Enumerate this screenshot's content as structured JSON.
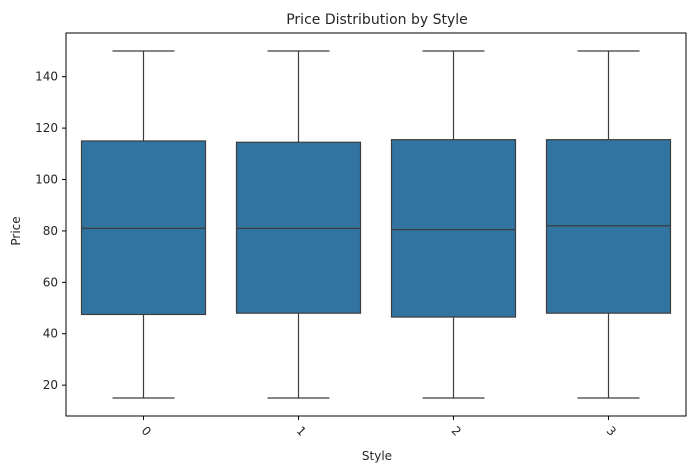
{
  "chart_data": {
    "type": "box",
    "title": "Price Distribution by Style",
    "xlabel": "Style",
    "ylabel": "Price",
    "categories": [
      "0",
      "1",
      "2",
      "3"
    ],
    "boxes": [
      {
        "category": "0",
        "min": 15,
        "q1": 47.5,
        "median": 81,
        "q3": 115,
        "max": 150
      },
      {
        "category": "1",
        "min": 15,
        "q1": 48,
        "median": 81,
        "q3": 114.5,
        "max": 150
      },
      {
        "category": "2",
        "min": 15,
        "q1": 46.5,
        "median": 80.5,
        "q3": 115.5,
        "max": 150
      },
      {
        "category": "3",
        "min": 15,
        "q1": 48,
        "median": 82,
        "q3": 115.5,
        "max": 150
      }
    ],
    "yticks": [
      20,
      40,
      60,
      80,
      100,
      120,
      140
    ],
    "ylim": [
      8,
      157
    ],
    "xtick_rotation": 45,
    "grid": false,
    "colors": {
      "box_fill": "#3274a1",
      "line": "#3d3d3d",
      "axis": "#000000"
    }
  }
}
